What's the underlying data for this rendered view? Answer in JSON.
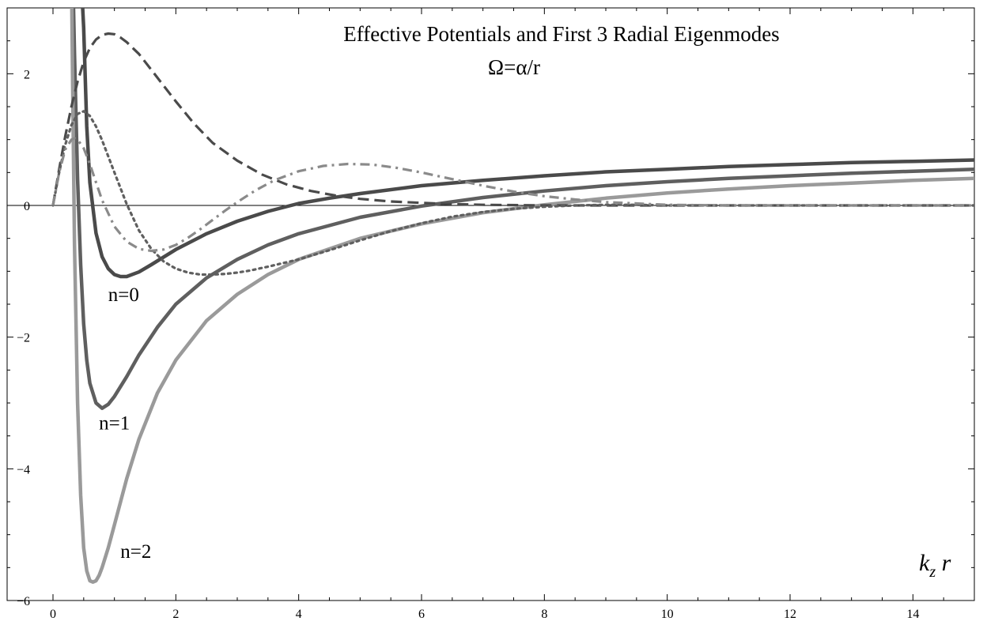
{
  "chart_data": {
    "type": "line",
    "title": "Effective Potentials and First 3 Radial Eigenmodes",
    "subtitle": "Ω=α/r",
    "xlabel": "k_z r",
    "ylabel": "",
    "xlim": [
      0,
      15
    ],
    "ylim": [
      -6,
      3
    ],
    "xticks": [
      0,
      2,
      4,
      6,
      8,
      10,
      12,
      14
    ],
    "xtick_labels": [
      "0",
      "2",
      "4",
      "6",
      "8",
      "10",
      "12",
      "14"
    ],
    "yticks": [
      -6,
      -4,
      -2,
      0,
      2
    ],
    "ytick_labels": [
      "−6",
      "−4",
      "−2",
      "0",
      "2"
    ],
    "grid": false,
    "legend": "none",
    "annotations": [
      {
        "text": "n=0",
        "x": 1.15,
        "y": -1.45
      },
      {
        "text": "n=1",
        "x": 1.0,
        "y": -3.4
      },
      {
        "text": "n=2",
        "x": 1.35,
        "y": -5.35
      }
    ],
    "series": [
      {
        "style": "solid",
        "color": "#4a4a4a",
        "x": [
          0.45,
          0.5,
          0.55,
          0.6,
          0.7,
          0.8,
          0.9,
          1.0,
          1.1,
          1.2,
          1.4,
          1.6,
          2.0,
          2.5,
          3.0,
          3.5,
          4.0,
          4.5,
          5,
          6,
          7,
          8,
          9,
          10,
          11,
          12,
          13,
          14,
          15
        ],
        "y": [
          3.6,
          2.7,
          1.2,
          0.35,
          -0.42,
          -0.78,
          -0.96,
          -1.05,
          -1.08,
          -1.08,
          -1.01,
          -0.9,
          -0.67,
          -0.43,
          -0.24,
          -0.09,
          0.03,
          0.11,
          0.18,
          0.3,
          0.38,
          0.45,
          0.51,
          0.55,
          0.59,
          0.62,
          0.65,
          0.67,
          0.69
        ]
      },
      {
        "style": "solid",
        "color": "#5f5f5f",
        "x": [
          0.32,
          0.35,
          0.4,
          0.45,
          0.5,
          0.55,
          0.6,
          0.7,
          0.8,
          0.9,
          1.0,
          1.2,
          1.4,
          1.7,
          2.0,
          2.5,
          3.0,
          3.5,
          4.0,
          5,
          6,
          7,
          8,
          9,
          10,
          11,
          12,
          13,
          14,
          15
        ],
        "y": [
          3.6,
          2.3,
          0.4,
          -0.9,
          -1.8,
          -2.35,
          -2.7,
          -3.0,
          -3.08,
          -3.02,
          -2.9,
          -2.6,
          -2.27,
          -1.85,
          -1.5,
          -1.1,
          -0.82,
          -0.6,
          -0.43,
          -0.18,
          -0.01,
          0.12,
          0.22,
          0.3,
          0.36,
          0.41,
          0.45,
          0.49,
          0.52,
          0.55
        ]
      },
      {
        "style": "solid",
        "color": "#9a9a9a",
        "x": [
          0.3,
          0.32,
          0.35,
          0.4,
          0.45,
          0.5,
          0.55,
          0.6,
          0.65,
          0.7,
          0.75,
          0.8,
          0.9,
          1.0,
          1.2,
          1.4,
          1.7,
          2.0,
          2.5,
          3.0,
          3.5,
          4.0,
          5,
          6,
          7,
          8,
          9,
          10,
          11,
          12,
          13,
          14,
          15
        ],
        "y": [
          3.6,
          1.8,
          -0.6,
          -3.0,
          -4.4,
          -5.2,
          -5.55,
          -5.7,
          -5.72,
          -5.7,
          -5.62,
          -5.5,
          -5.2,
          -4.85,
          -4.15,
          -3.55,
          -2.85,
          -2.35,
          -1.75,
          -1.35,
          -1.05,
          -0.82,
          -0.5,
          -0.28,
          -0.11,
          0.01,
          0.11,
          0.19,
          0.25,
          0.3,
          0.34,
          0.38,
          0.41
        ]
      },
      {
        "style": "dashed",
        "color": "#4a4a4a",
        "x": [
          0,
          0.1,
          0.2,
          0.3,
          0.4,
          0.5,
          0.6,
          0.7,
          0.8,
          0.9,
          1.0,
          1.1,
          1.2,
          1.4,
          1.6,
          1.8,
          2.0,
          2.3,
          2.6,
          3.0,
          3.4,
          3.8,
          4.2,
          4.6,
          5.0,
          5.5,
          6.0,
          6.5,
          7,
          8,
          9,
          10,
          11,
          12,
          13,
          14,
          15
        ],
        "y": [
          0,
          0.55,
          1.05,
          1.5,
          1.88,
          2.18,
          2.39,
          2.52,
          2.59,
          2.61,
          2.6,
          2.55,
          2.48,
          2.3,
          2.06,
          1.82,
          1.58,
          1.24,
          0.95,
          0.68,
          0.47,
          0.32,
          0.22,
          0.15,
          0.1,
          0.06,
          0.04,
          0.02,
          0.01,
          0.0,
          0.0,
          0.0,
          0.0,
          0.0,
          0.0,
          0.0,
          0.0
        ]
      },
      {
        "style": "dotted",
        "color": "#5f5f5f",
        "x": [
          0,
          0.1,
          0.2,
          0.3,
          0.4,
          0.5,
          0.6,
          0.7,
          0.8,
          1.0,
          1.2,
          1.4,
          1.6,
          1.8,
          2.0,
          2.2,
          2.4,
          2.6,
          2.8,
          3.0,
          3.2,
          3.5,
          4.0,
          4.5,
          5.0,
          5.5,
          6.0,
          6.5,
          7,
          7.5,
          8,
          8.5,
          9,
          9.5,
          10,
          11,
          12,
          13,
          14,
          15
        ],
        "y": [
          0,
          0.5,
          0.92,
          1.22,
          1.39,
          1.43,
          1.36,
          1.2,
          0.99,
          0.5,
          0.02,
          -0.38,
          -0.66,
          -0.85,
          -0.96,
          -1.02,
          -1.05,
          -1.05,
          -1.04,
          -1.02,
          -0.99,
          -0.93,
          -0.82,
          -0.68,
          -0.53,
          -0.39,
          -0.27,
          -0.17,
          -0.1,
          -0.05,
          -0.02,
          0.0,
          0.01,
          0.01,
          0.0,
          0.0,
          0.0,
          0.0,
          0.0,
          0.0
        ]
      },
      {
        "style": "dashdot",
        "color": "#8a8a8a",
        "x": [
          0,
          0.1,
          0.2,
          0.3,
          0.35,
          0.4,
          0.5,
          0.6,
          0.7,
          0.8,
          1.0,
          1.2,
          1.4,
          1.6,
          1.8,
          2.0,
          2.2,
          2.4,
          2.6,
          2.8,
          3.0,
          3.3,
          3.6,
          4.0,
          4.4,
          4.8,
          5.2,
          5.6,
          6.0,
          6.5,
          7.0,
          7.5,
          8.0,
          8.5,
          9.0,
          9.5,
          10,
          11,
          12,
          13,
          14,
          15
        ],
        "y": [
          0,
          0.5,
          0.85,
          1.0,
          1.02,
          1.0,
          0.87,
          0.63,
          0.35,
          0.08,
          -0.32,
          -0.55,
          -0.66,
          -0.69,
          -0.67,
          -0.6,
          -0.49,
          -0.36,
          -0.22,
          -0.08,
          0.05,
          0.23,
          0.38,
          0.52,
          0.6,
          0.63,
          0.62,
          0.57,
          0.5,
          0.4,
          0.3,
          0.21,
          0.14,
          0.09,
          0.05,
          0.03,
          0.01,
          0.0,
          0.0,
          0.0,
          0.0,
          0.0
        ]
      }
    ]
  }
}
